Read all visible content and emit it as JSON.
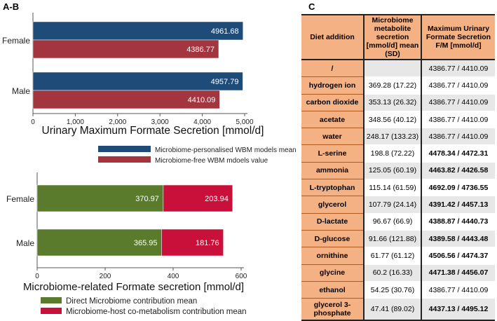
{
  "panels": {
    "ab": "A-B",
    "c": "C"
  },
  "chart_data": [
    {
      "type": "bar",
      "orientation": "horizontal",
      "categories": [
        "Female",
        "Male"
      ],
      "series": [
        {
          "name": "Microbiome-personalised WBM models mean",
          "color": "#1f4b78",
          "values": [
            4961.68,
            4957.79
          ]
        },
        {
          "name": "Microbiome-free WBM mdoels value",
          "color": "#a2353d",
          "values": [
            4386.77,
            4410.09
          ]
        }
      ],
      "xlabel": "Urinary Maximum Formate Secretion [mmol/d]",
      "xlim": [
        0,
        5000
      ],
      "xticks": [
        "0",
        "1,000",
        "2,000",
        "3,000",
        "4,000",
        "5,000"
      ],
      "legend": "bottom"
    },
    {
      "type": "bar",
      "orientation": "horizontal",
      "stacked": true,
      "categories": [
        "Female",
        "Male"
      ],
      "series": [
        {
          "name": "Direct Microbiome contribution mean",
          "color": "#5b7b2c",
          "values": [
            370.97,
            365.95
          ]
        },
        {
          "name": "Microbiome-host co-metabolism contribution mean",
          "color": "#c8103a",
          "values": [
            203.94,
            181.76
          ]
        }
      ],
      "xlabel": "Microbiome-related Formate secretion [mmol/d]",
      "xlim": [
        0,
        600
      ],
      "xticks": [
        "0",
        "200",
        "400",
        "600"
      ],
      "legend": "bottom"
    }
  ],
  "table": {
    "headers": [
      "Diet addition",
      "Microbiome metabolite secretion [mmol/d] mean (SD)",
      "Maximum Urinary Formate Secretion F/M [mmol/d]"
    ],
    "rows": [
      {
        "diet": "/",
        "secretion": "",
        "max": "4386.77 / 4410.09",
        "bold": false
      },
      {
        "diet": "hydrogen ion",
        "secretion": "369.28 (17.22)",
        "max": "4386.77 / 4410.09",
        "bold": false
      },
      {
        "diet": "carbon dioxide",
        "secretion": "353.13 (26.32)",
        "max": "4386.77 / 4410.09",
        "bold": false
      },
      {
        "diet": "acetate",
        "secretion": "348.56 (40.12)",
        "max": "4386.77 / 4410.09",
        "bold": false
      },
      {
        "diet": "water",
        "secretion": "248.17 (133.23)",
        "max": "4386.77 / 4410.09",
        "bold": false
      },
      {
        "diet": "L-serine",
        "secretion": "198.8 (72.22)",
        "max": "4478.34 / 4472.31",
        "bold": true
      },
      {
        "diet": "ammonia",
        "secretion": "125.05 (60.19)",
        "max": "4463.82 / 4426.58",
        "bold": true
      },
      {
        "diet": "L-tryptophan",
        "secretion": "115.14 (61.59)",
        "max": "4692.09 / 4736.55",
        "bold": true
      },
      {
        "diet": "glycerol",
        "secretion": "107.79 (24.14)",
        "max": "4391.42 / 4457.13",
        "bold": true
      },
      {
        "diet": "D-lactate",
        "secretion": "96.67 (66.9)",
        "max": "4388.87 / 4440.73",
        "bold": true
      },
      {
        "diet": "D-glucose",
        "secretion": "91.66 (121.88)",
        "max": "4389.58 / 4443.48",
        "bold": true
      },
      {
        "diet": "ornithine",
        "secretion": "61.77 (61.12)",
        "max": "4506.56 / 4474.37",
        "bold": true
      },
      {
        "diet": "glycine",
        "secretion": "60.2 (16.33)",
        "max": "4471.38 / 4456.07",
        "bold": true
      },
      {
        "diet": "ethanol",
        "secretion": "54.25 (30.76)",
        "max": "4386.77 / 4410.09",
        "bold": false
      },
      {
        "diet": "glycerol 3-phosphate",
        "secretion": "47.41 (89.02)",
        "max": "4437.13 / 4495.12",
        "bold": true
      }
    ]
  }
}
